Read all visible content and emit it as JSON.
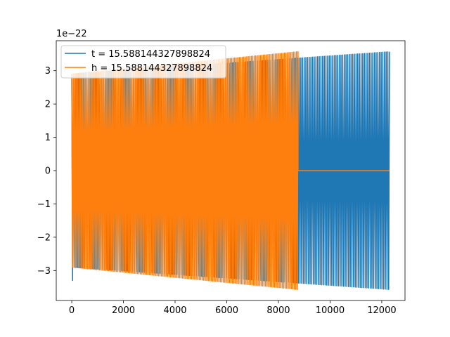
{
  "chart_data": {
    "type": "line",
    "title": "",
    "xlabel": "",
    "ylabel": "",
    "y_offset_label": "1e−22",
    "xlim": [
      -600,
      12900
    ],
    "ylim": [
      -3.9,
      3.9
    ],
    "x_ticks": [
      0,
      2000,
      4000,
      6000,
      8000,
      10000,
      12000
    ],
    "x_tick_labels": [
      "0",
      "2000",
      "4000",
      "6000",
      "8000",
      "10000",
      "12000"
    ],
    "y_ticks": [
      -3,
      -2,
      -1,
      0,
      1,
      2,
      3
    ],
    "y_tick_labels": [
      "−3",
      "−2",
      "−1",
      "0",
      "1",
      "2",
      "3"
    ],
    "grid": false,
    "legend": "top-left",
    "series": [
      {
        "name": "t = 15.588144327898824",
        "color": "#1f77b4",
        "x_start": 0,
        "x_end": 12300,
        "amplitude_start": 2.9,
        "amplitude_end": 3.57,
        "cycles": 190,
        "initial_dip": -3.3
      },
      {
        "name": "h = 15.588144327898824",
        "color": "#ff7f0e",
        "x_start": 0,
        "x_end": 8760,
        "amplitude_start": 2.9,
        "amplitude_end": 3.57,
        "cycles": 150,
        "flat_after_end_to": 12300,
        "flat_value": 0.0
      }
    ]
  }
}
